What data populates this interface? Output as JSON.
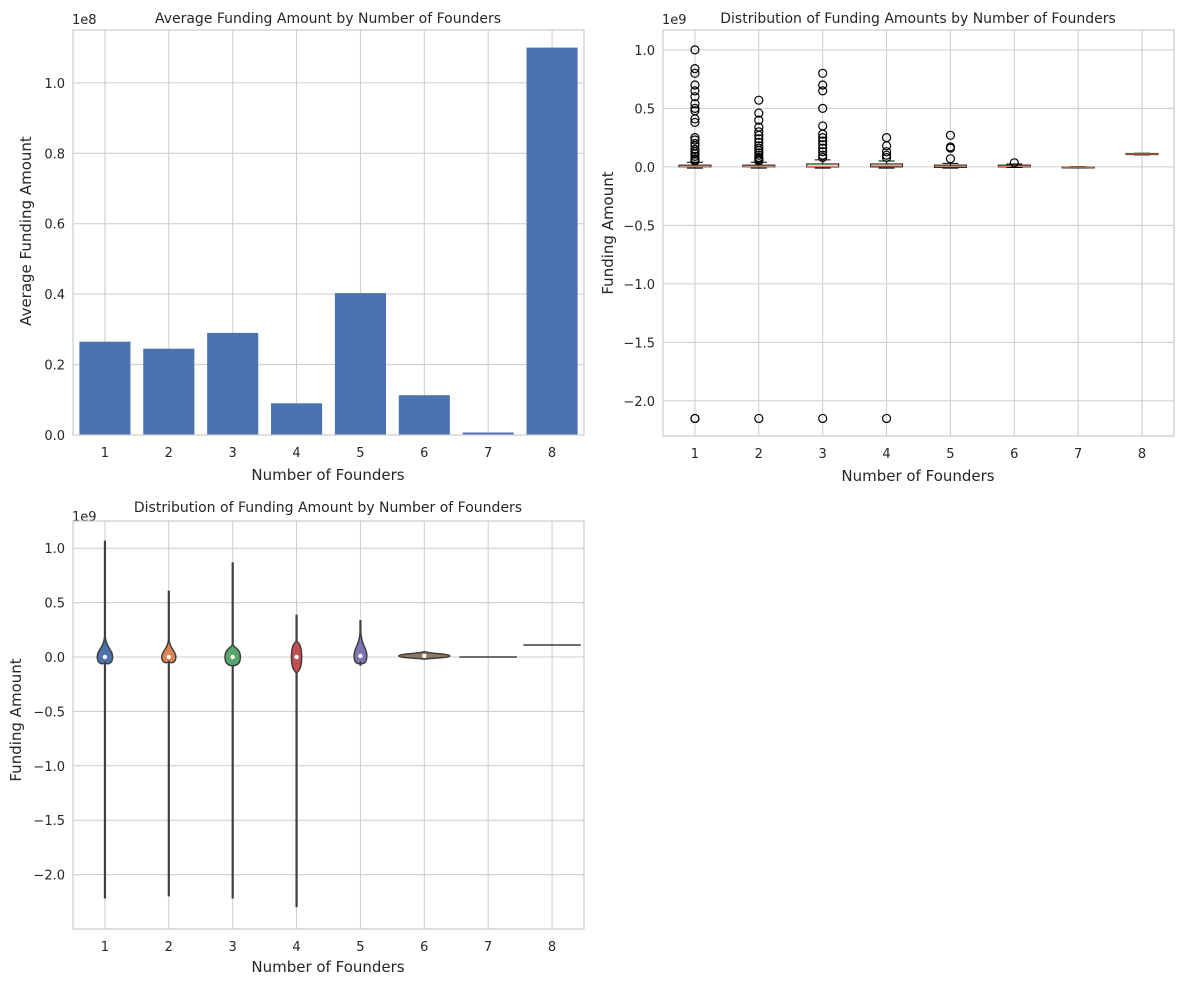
{
  "chart_data": [
    {
      "type": "bar",
      "title": "Average Funding Amount by Number of Founders",
      "xlabel": "Number of Founders",
      "ylabel": "Average Funding Amount",
      "offset_label": "1e8",
      "categories": [
        "1",
        "2",
        "3",
        "4",
        "5",
        "6",
        "7",
        "8"
      ],
      "values": [
        26500000,
        24500000,
        29000000,
        9000000,
        40300000,
        11300000,
        700000,
        110000000
      ],
      "ylim": [
        0,
        115000000
      ],
      "yticks": [
        0,
        20000000,
        40000000,
        60000000,
        80000000,
        100000000
      ],
      "ytick_labels": [
        "0.0",
        "0.2",
        "0.4",
        "0.6",
        "0.8",
        "1.0"
      ],
      "grid": true,
      "color": "#4c72b0"
    },
    {
      "type": "box",
      "title": "Distribution of Funding Amounts by Number of Founders",
      "xlabel": "Number of Founders",
      "ylabel": "Funding Amount",
      "offset_label": "1e9",
      "categories": [
        "1",
        "2",
        "3",
        "4",
        "5",
        "6",
        "7",
        "8"
      ],
      "ylim": [
        -2.3,
        1.17
      ],
      "yticks": [
        -2.0,
        -1.5,
        -1.0,
        -0.5,
        0.0,
        0.5,
        1.0
      ],
      "ytick_labels": [
        "−2.0",
        "−1.5",
        "−1.0",
        "−0.5",
        "0.0",
        "0.5",
        "1.0"
      ],
      "grid": true,
      "median_color": "#dd8452",
      "boxes": [
        {
          "q1": 0.0,
          "median": 0.003,
          "q3": 0.015,
          "whisker_low": -0.01,
          "whisker_high": 0.04,
          "outliers": [
            1.0,
            0.84,
            0.8,
            0.7,
            0.65,
            0.6,
            0.54,
            0.5,
            0.48,
            0.41,
            0.38,
            0.25,
            0.23,
            0.2,
            0.18,
            0.15,
            0.13,
            0.11,
            0.09,
            0.07,
            0.06,
            0.05,
            -2.15,
            -2.15
          ]
        },
        {
          "q1": 0.0,
          "median": 0.003,
          "q3": 0.015,
          "whisker_low": -0.01,
          "whisker_high": 0.04,
          "outliers": [
            0.57,
            0.46,
            0.4,
            0.34,
            0.3,
            0.27,
            0.24,
            0.21,
            0.18,
            0.16,
            0.14,
            0.12,
            0.1,
            0.08,
            0.07,
            0.06,
            0.05,
            -2.15
          ]
        },
        {
          "q1": 0.0,
          "median": 0.005,
          "q3": 0.025,
          "whisker_low": -0.01,
          "whisker_high": 0.06,
          "outliers": [
            0.8,
            0.7,
            0.65,
            0.5,
            0.35,
            0.28,
            0.25,
            0.22,
            0.19,
            0.16,
            0.13,
            0.1,
            0.08,
            -2.15
          ]
        },
        {
          "q1": 0.0,
          "median": 0.008,
          "q3": 0.025,
          "whisker_low": -0.01,
          "whisker_high": 0.05,
          "outliers": [
            0.25,
            0.18,
            0.13,
            0.1,
            0.08,
            -2.15
          ]
        },
        {
          "q1": -0.005,
          "median": 0.003,
          "q3": 0.015,
          "whisker_low": -0.01,
          "whisker_high": 0.03,
          "outliers": [
            0.27,
            0.17,
            0.16,
            0.07
          ]
        },
        {
          "q1": 0.0,
          "median": 0.005,
          "q3": 0.015,
          "whisker_low": -0.005,
          "whisker_high": 0.025,
          "outliers": [
            0.035
          ]
        },
        {
          "q1": -0.005,
          "median": -0.002,
          "q3": 0.0,
          "whisker_low": -0.007,
          "whisker_high": 0.002,
          "outliers": []
        },
        {
          "q1": 0.105,
          "median": 0.11,
          "q3": 0.115,
          "whisker_low": 0.103,
          "whisker_high": 0.117,
          "outliers": []
        }
      ]
    },
    {
      "type": "violin",
      "title": "Distribution of Funding Amount by Number of Founders",
      "xlabel": "Number of Founders",
      "ylabel": "Funding Amount",
      "offset_label": "1e9",
      "categories": [
        "1",
        "2",
        "3",
        "4",
        "5",
        "6",
        "7",
        "8"
      ],
      "ylim": [
        -2.5,
        1.25
      ],
      "yticks": [
        -2.0,
        -1.5,
        -1.0,
        -0.5,
        0.0,
        0.5,
        1.0
      ],
      "ytick_labels": [
        "−2.0",
        "−1.5",
        "−1.0",
        "−0.5",
        "0.0",
        "0.5",
        "1.0"
      ],
      "grid": true,
      "violins": [
        {
          "color": "#4c72b0",
          "min": -2.22,
          "max": 1.07,
          "center": 0.0,
          "half_height": 0.07,
          "half_width": 0.12,
          "tail_high": 0.2,
          "tail_low": -0.05,
          "median": 0.0
        },
        {
          "color": "#dd8452",
          "min": -2.2,
          "max": 0.61,
          "center": 0.0,
          "half_height": 0.06,
          "half_width": 0.11,
          "tail_high": 0.17,
          "tail_low": -0.04,
          "median": 0.0
        },
        {
          "color": "#55a868",
          "min": -2.22,
          "max": 0.87,
          "center": 0.0,
          "half_height": 0.08,
          "half_width": 0.12,
          "tail_high": 0.12,
          "tail_low": -0.08,
          "median": 0.0
        },
        {
          "color": "#c44e52",
          "min": -2.3,
          "max": 0.39,
          "center": 0.0,
          "half_height": 0.13,
          "half_width": 0.08,
          "tail_high": 0.15,
          "tail_low": -0.15,
          "median": 0.0
        },
        {
          "color": "#8172b3",
          "min": -0.08,
          "max": 0.34,
          "center": 0.01,
          "half_height": 0.08,
          "half_width": 0.1,
          "tail_high": 0.25,
          "tail_low": -0.05,
          "median": 0.01
        },
        {
          "color": "#937860",
          "min": -0.02,
          "max": 0.05,
          "center": 0.01,
          "half_height": 0.02,
          "half_width": 0.4,
          "tail_high": 0.05,
          "tail_low": -0.02,
          "median": 0.01
        },
        {
          "color": "#da8bc3",
          "min": 0.0,
          "max": 0.0,
          "center": 0.0,
          "half_height": 0.002,
          "half_width": 0.45,
          "tail_high": 0.0,
          "tail_low": 0.0,
          "median": 0.0
        },
        {
          "color": "#8c8c8c",
          "min": 0.11,
          "max": 0.11,
          "center": 0.11,
          "half_height": 0.002,
          "half_width": 0.45,
          "tail_high": 0.11,
          "tail_low": 0.11,
          "median": 0.11
        }
      ]
    }
  ]
}
